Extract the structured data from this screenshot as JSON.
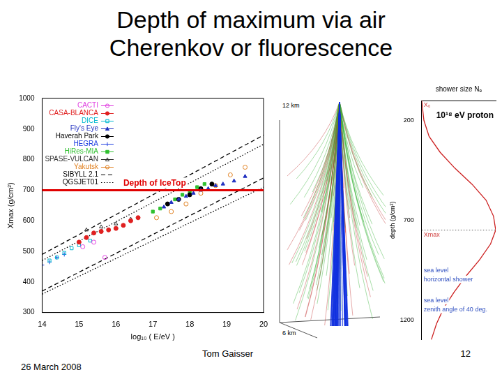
{
  "slide": {
    "title": "Depth of maximum via air Cherenkov or fluorescence",
    "author": "Tom Gaisser",
    "date": "26 March 2008",
    "page": "12"
  },
  "shower_image": {
    "labels": [
      "12 km",
      "6 km"
    ]
  },
  "chart_data": [
    {
      "type": "scatter",
      "x_label": "log₁₀ ( E/eV )",
      "y_label": "Xmax (g/cm²)",
      "xlim": [
        14,
        20
      ],
      "xticks": [
        14,
        15,
        16,
        17,
        18,
        19,
        20
      ],
      "ylim": [
        300,
        1000
      ],
      "yticks": [
        300,
        400,
        500,
        600,
        700,
        800,
        900,
        1000
      ],
      "grid": false,
      "legend": "upper left",
      "series": [
        {
          "name": "CACTI",
          "color": "#e040e0",
          "marker": "open_circle",
          "x": [
            15.1,
            15.4,
            15.7
          ],
          "values": [
            515,
            530,
            480
          ]
        },
        {
          "name": "CASA-BLANCA",
          "color": "#e02020",
          "marker": "circle",
          "x": [
            15.0,
            15.2,
            15.4,
            15.6,
            15.8,
            16.0,
            16.2,
            16.4,
            16.6
          ],
          "values": [
            530,
            545,
            560,
            565,
            570,
            575,
            585,
            600,
            610
          ]
        },
        {
          "name": "DICE",
          "color": "#00b8d0",
          "marker": "open_square",
          "x": [
            14.2,
            14.4,
            14.6,
            14.8,
            15.0,
            15.3
          ],
          "values": [
            470,
            480,
            495,
            510,
            520,
            535
          ]
        },
        {
          "name": "Fly's Eye",
          "color": "#2030c0",
          "marker": "triangle",
          "x": [
            17.3,
            17.5,
            17.7,
            17.9,
            18.1,
            18.3,
            18.5,
            18.7,
            18.9,
            19.2,
            19.5
          ],
          "values": [
            645,
            660,
            670,
            680,
            690,
            700,
            705,
            715,
            720,
            730,
            745
          ]
        },
        {
          "name": "Haverah Park",
          "color": "#000000",
          "marker": "circle",
          "x": [
            17.4,
            17.7,
            18.0,
            18.3,
            18.6
          ],
          "values": [
            655,
            670,
            685,
            705,
            720
          ]
        },
        {
          "name": "HEGRA",
          "color": "#2040e0",
          "marker": "cross",
          "x": [
            14.0,
            14.2,
            14.4,
            14.6
          ],
          "values": [
            455,
            465,
            480,
            490
          ]
        },
        {
          "name": "HiRes-MIA",
          "color": "#30c030",
          "marker": "square",
          "x": [
            17.0,
            17.2,
            17.4,
            17.6,
            17.8,
            18.0,
            18.2,
            18.4
          ],
          "values": [
            630,
            640,
            655,
            670,
            685,
            695,
            710,
            720
          ]
        },
        {
          "name": "SPASE-VULCAN",
          "color": "#303030",
          "marker": "open_triangle",
          "x": [
            15.2,
            15.6,
            16.0,
            16.4
          ],
          "values": [
            570,
            580,
            590,
            605
          ]
        },
        {
          "name": "Yakutsk",
          "color": "#e08020",
          "marker": "open_circle",
          "x": [
            17.1,
            17.5,
            17.9,
            18.3,
            18.7,
            19.1,
            19.5
          ],
          "values": [
            610,
            630,
            655,
            690,
            715,
            750,
            775
          ]
        },
        {
          "name": "SIBYLL 2.1",
          "color": "#000000",
          "type": "line",
          "line_style": "dashed",
          "x": [
            14,
            20,
            20,
            14,
            20
          ],
          "values": [
            490,
            880,
            null,
            370,
            740
          ]
        },
        {
          "name": "QGSJET01",
          "color": "#000000",
          "type": "line",
          "line_style": "dotted",
          "x": [
            14,
            20,
            20,
            14,
            20
          ],
          "values": [
            470,
            850,
            null,
            360,
            710
          ]
        }
      ],
      "annotations": [
        {
          "text": "Depth of IceTop",
          "y": 700,
          "color": "#e00000"
        }
      ]
    },
    {
      "type": "line",
      "title": "10¹⁸ eV proton",
      "x_label": "shower size Nₑ",
      "y_label": "depth (g/cm²)",
      "xlim": [
        0,
        1
      ],
      "ylim": [
        1300,
        100
      ],
      "yticks": [
        200,
        700,
        1200
      ],
      "grid": false,
      "tick_labels": "y",
      "series": [
        {
          "color": "#cc2020",
          "x": [
            0,
            0.03,
            0.1,
            0.25,
            0.45,
            0.68,
            0.87,
            0.97,
            1.0,
            0.93,
            0.78,
            0.6,
            0.44,
            0.3,
            0.2,
            0.13
          ],
          "values": [
            100,
            200,
            280,
            360,
            440,
            520,
            600,
            680,
            750,
            820,
            900,
            980,
            1060,
            1140,
            1220,
            1300
          ]
        }
      ],
      "annotations": [
        {
          "text": "X₀",
          "y": 100,
          "color": "#d04040"
        },
        {
          "text": "Xmax",
          "y": 750,
          "color": "#d04040",
          "line_style": "dotted"
        },
        {
          "text": "sea level",
          "y": 930,
          "color": "#3050c0"
        },
        {
          "text": "horizontal shower",
          "y": 975,
          "color": "#3050c0"
        },
        {
          "text": "sea level",
          "y": 1080,
          "color": "#3050c0"
        },
        {
          "text": "zenith angle of 40 deg.",
          "y": 1125,
          "color": "#3050c0"
        }
      ]
    }
  ]
}
